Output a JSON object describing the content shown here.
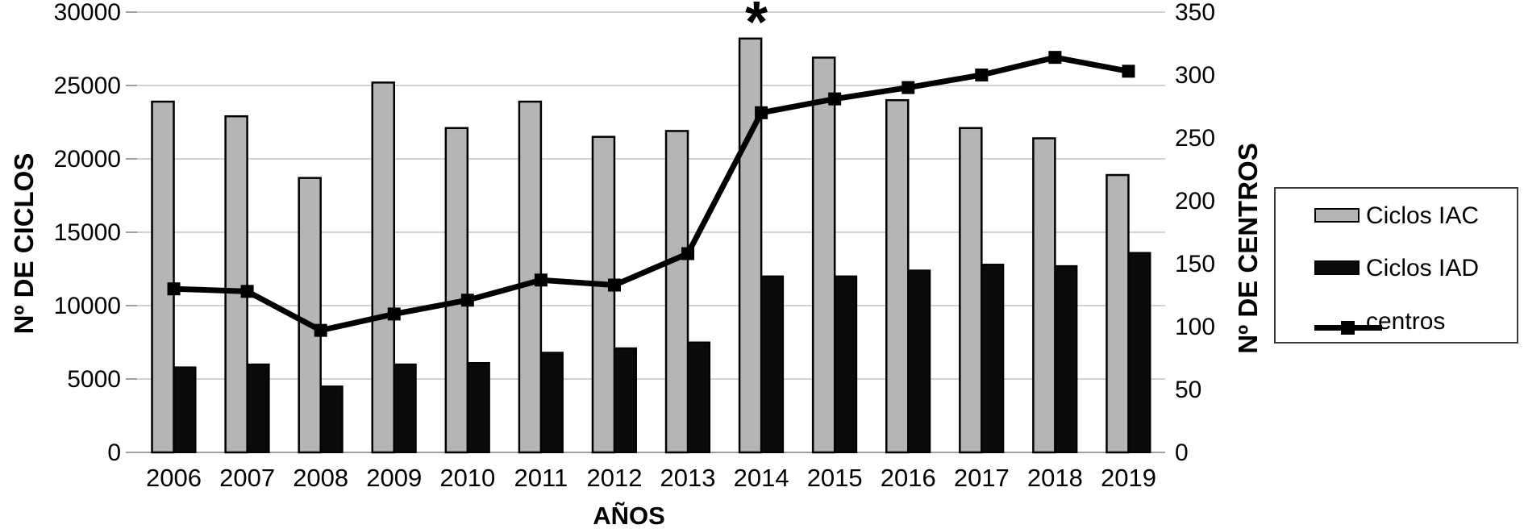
{
  "figure": {
    "background": "#ffffff",
    "legend": {
      "border_color": "#3a3a3a",
      "items": [
        {
          "label": "Ciclos IAC",
          "swatch": "gray-bar"
        },
        {
          "label": "Ciclos IAD",
          "swatch": "black-bar"
        },
        {
          "label": "centros",
          "swatch": "black-line-square-marker"
        }
      ]
    },
    "colors": {
      "bar_gray": "#b5b5b5",
      "bar_black": "#0a0a0a",
      "line": "#000000",
      "gridline": "#c4c4c4",
      "axis_line": "#a0a0a0",
      "text": "#000000"
    }
  },
  "chart_data": {
    "type": "bar+line combo (dual axis)",
    "title": "",
    "xlabel": "AÑOS",
    "left_ylabel": "Nº DE CICLOS",
    "right_ylabel": "Nº DE CENTROS",
    "left_ylim": [
      0,
      30000
    ],
    "left_step": 5000,
    "left_tick_labels": [
      "0",
      "5000",
      "10000",
      "15000",
      "20000",
      "25000",
      "30000"
    ],
    "right_ylim": [
      0,
      350
    ],
    "right_step": 50,
    "right_tick_labels": [
      "0",
      "50",
      "100",
      "150",
      "200",
      "250",
      "300",
      "350"
    ],
    "grid": "horizontal gridlines every 5000 (left axis), legend outside right",
    "categories": [
      "2006",
      "2007",
      "2008",
      "2009",
      "2010",
      "2011",
      "2012",
      "2013",
      "2014",
      "2015",
      "2016",
      "2017",
      "2018",
      "2019"
    ],
    "series": [
      {
        "name": "Ciclos IAC",
        "type": "bar",
        "axis": "left",
        "color": "#b5b5b5",
        "values": [
          23900,
          22900,
          18700,
          25200,
          22100,
          23900,
          21500,
          21900,
          28200,
          26900,
          24000,
          22100,
          21400,
          18900
        ]
      },
      {
        "name": "Ciclos IAD",
        "type": "bar",
        "axis": "left",
        "color": "#0a0a0a",
        "values": [
          5800,
          6000,
          4500,
          6000,
          6100,
          6800,
          7100,
          7500,
          12000,
          12000,
          12400,
          12800,
          12700,
          13600
        ]
      },
      {
        "name": "centros",
        "type": "line",
        "axis": "right",
        "color": "#000000",
        "marker": "square",
        "values": [
          130,
          128,
          97,
          110,
          121,
          137,
          133,
          158,
          270,
          281,
          290,
          300,
          314,
          303
        ]
      }
    ],
    "annotations": [
      {
        "text": "*",
        "category": "2014",
        "position": "above plot top"
      }
    ]
  }
}
